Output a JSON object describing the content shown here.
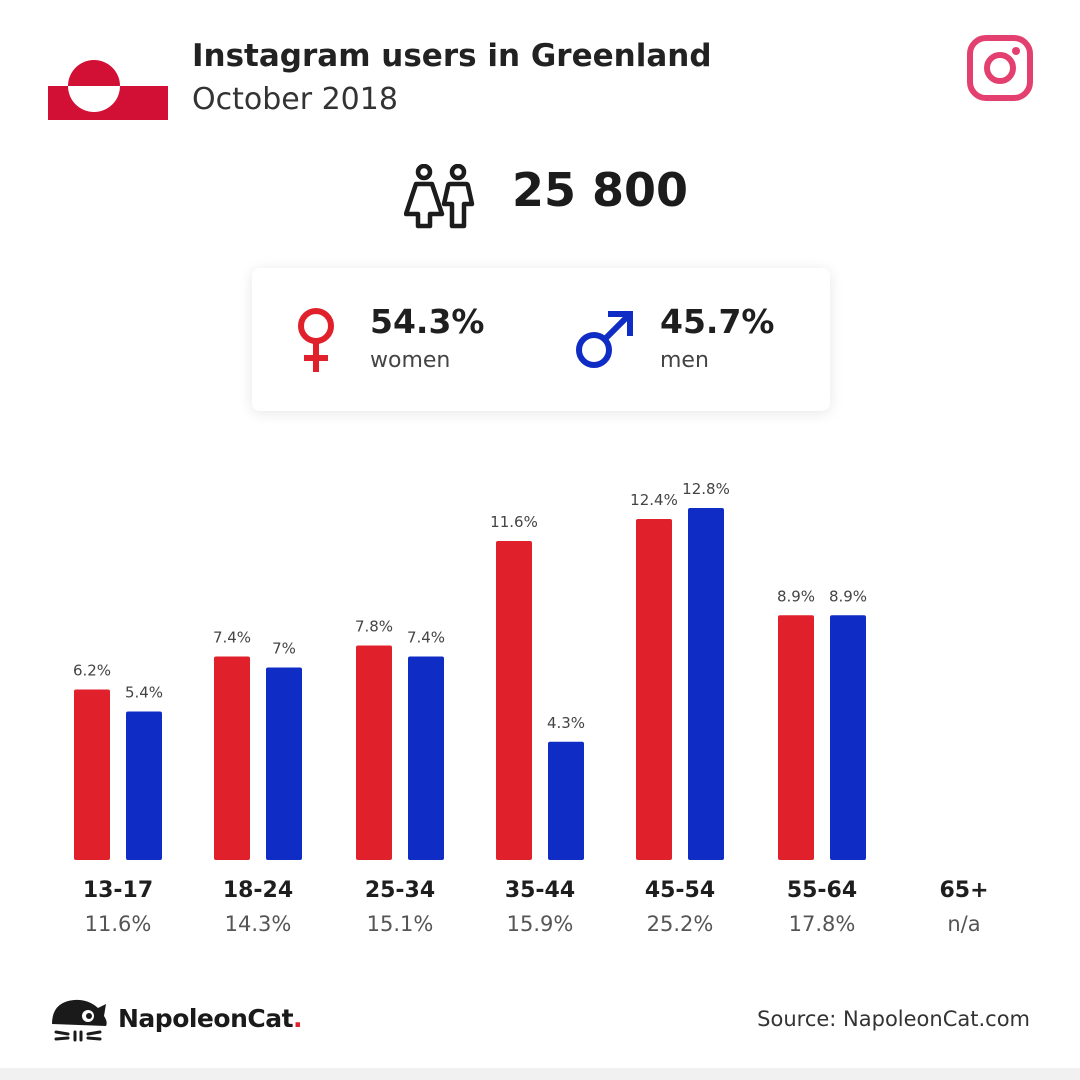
{
  "header": {
    "title": "Instagram users in Greenland",
    "subtitle": "October 2018"
  },
  "total": {
    "value": "25 800"
  },
  "gender": {
    "women": {
      "percent": "54.3%",
      "label": "women"
    },
    "men": {
      "percent": "45.7%",
      "label": "men"
    }
  },
  "colors": {
    "women": "#e0202a",
    "men": "#0f2cc4",
    "instagram": "#e4406f"
  },
  "icons": {
    "flag": "greenland-flag-icon",
    "brand": "instagram-icon",
    "users": "people-icon",
    "female": "female-symbol-icon",
    "male": "male-symbol-icon",
    "logo": "napoleoncat-logo-icon"
  },
  "chart_data": {
    "type": "bar",
    "categories": [
      "13-17",
      "18-24",
      "25-34",
      "35-44",
      "45-54",
      "55-64",
      "65+"
    ],
    "category_totals": [
      "11.6%",
      "14.3%",
      "15.1%",
      "15.9%",
      "25.2%",
      "17.8%",
      "n/a"
    ],
    "series": [
      {
        "values": [
          6.2,
          7.4,
          7.8,
          11.6,
          12.4,
          8.9,
          null
        ],
        "labels": [
          "6.2%",
          "7.4%",
          "7.8%",
          "11.6%",
          "12.4%",
          "8.9%",
          ""
        ]
      },
      {
        "values": [
          5.4,
          7.0,
          7.4,
          4.3,
          12.8,
          8.9,
          null
        ],
        "labels": [
          "5.4%",
          "7%",
          "7.4%",
          "4.3%",
          "12.8%",
          "8.9%",
          ""
        ]
      }
    ],
    "ylim": [
      0,
      13.5
    ],
    "grid": false
  },
  "footer": {
    "brand_name": "NapoleonCat",
    "brand_dot": ".",
    "source": "Source: NapoleonCat.com"
  }
}
